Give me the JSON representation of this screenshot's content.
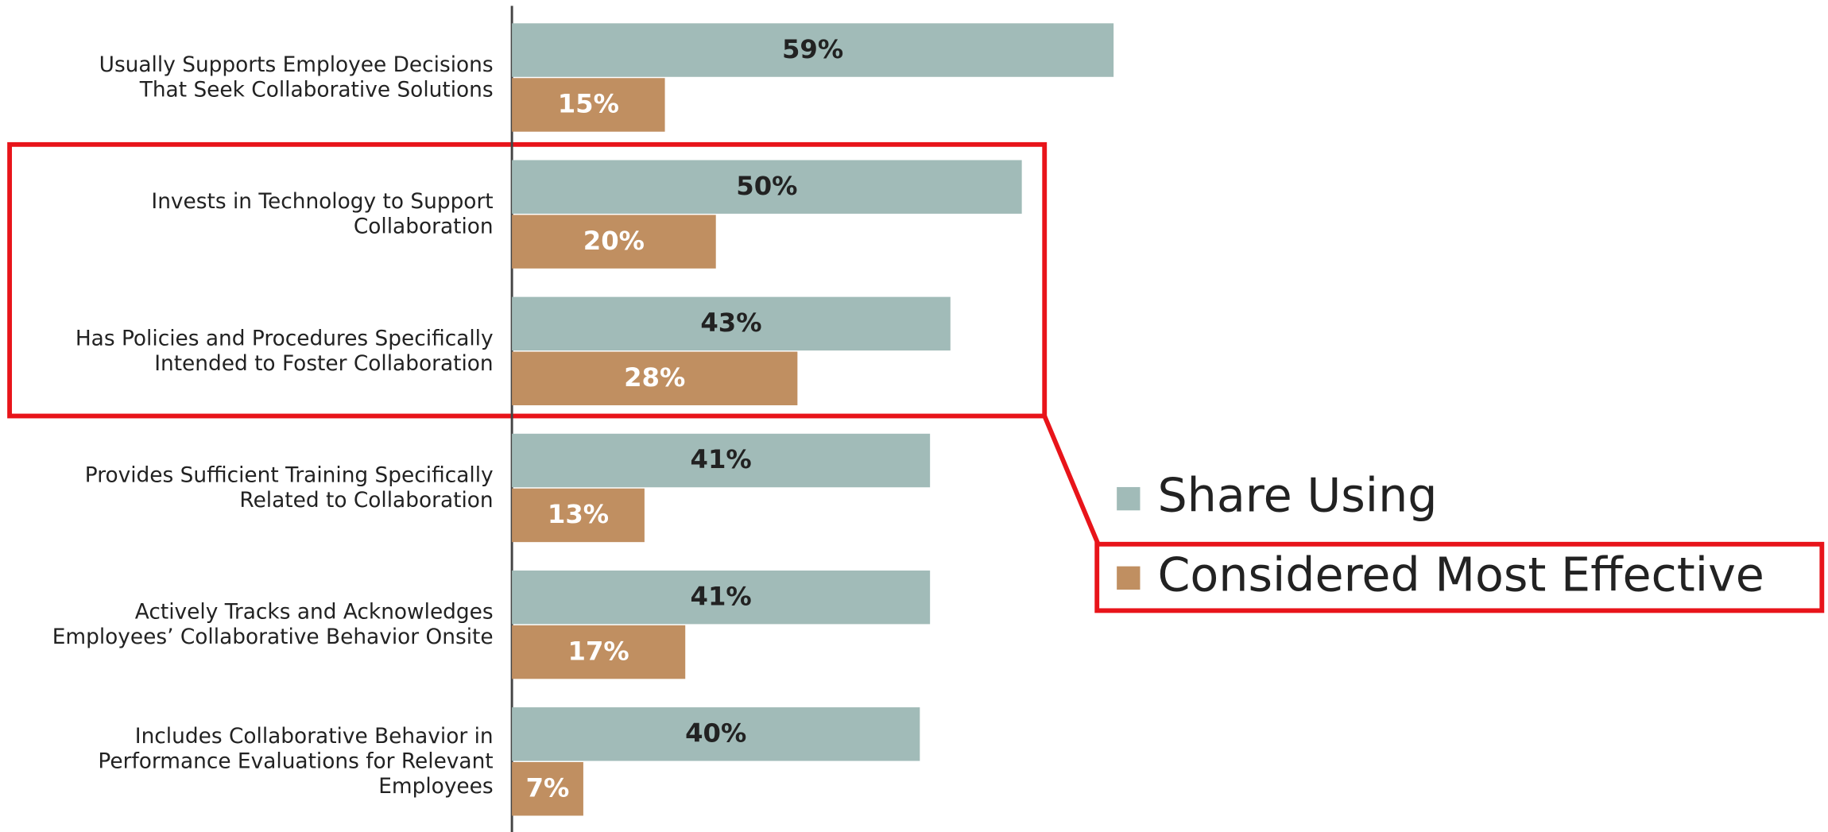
{
  "chart_data": {
    "type": "bar",
    "orientation": "horizontal",
    "categories": [
      [
        "Usually Supports Employee Decisions",
        "That Seek Collaborative Solutions"
      ],
      [
        "Invests in Technology to Support",
        "Collaboration"
      ],
      [
        "Has Policies and Procedures Specifically",
        "Intended to Foster Collaboration"
      ],
      [
        "Provides Sufficient Training Specifically",
        "Related to Collaboration"
      ],
      [
        "Actively Tracks and Acknowledges",
        "Employees’ Collaborative Behavior Onsite"
      ],
      [
        "Includes Collaborative Behavior in",
        "Performance Evaluations for Relevant",
        "Employees"
      ]
    ],
    "series": [
      {
        "name": "Share Using",
        "color": "#a1bbb8",
        "label_color": "#222222",
        "values": [
          59,
          50,
          43,
          41,
          41,
          40
        ],
        "value_labels": [
          "59%",
          "50%",
          "43%",
          "41%",
          "41%",
          "40%"
        ]
      },
      {
        "name": "Considered Most Effective",
        "color": "#c08f61",
        "label_color": "#ffffff",
        "values": [
          15,
          20,
          28,
          13,
          17,
          7
        ],
        "value_labels": [
          "15%",
          "20%",
          "28%",
          "13%",
          "17%",
          "7%"
        ]
      }
    ],
    "xlim": [
      0,
      100
    ]
  }
}
